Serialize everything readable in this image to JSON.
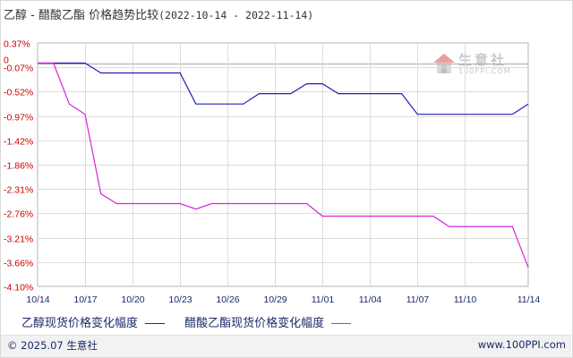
{
  "header": {
    "title": "乙醇 - 醋酸乙酯 价格趋势比较",
    "date_range": "(2022-10-14 - 2022-11-14)"
  },
  "watermark": {
    "name": "生意社",
    "url": "100PPI.COM"
  },
  "footer": {
    "copyright": "© 2025.07 生意社",
    "source": "www.100PPI.com"
  },
  "chart_data": {
    "type": "line",
    "title": "乙醇 - 醋酸乙酯 价格趋势比较(2022-10-14 - 2022-11-14)",
    "xlabel": "",
    "ylabel": "",
    "y_tick_labels": [
      "0.37%",
      "-0.07%",
      "-0.52%",
      "-0.97%",
      "-1.42%",
      "-1.86%",
      "-2.31%",
      "-2.76%",
      "-3.21%",
      "-3.66%",
      "-4.10%"
    ],
    "y_ticks": [
      0.37,
      -0.07,
      -0.52,
      -0.97,
      -1.42,
      -1.86,
      -2.31,
      -2.76,
      -3.21,
      -3.66,
      -4.1
    ],
    "ylim": [
      -4.1,
      0.37
    ],
    "zero_marker": "0",
    "x_tick_labels": [
      "10/14",
      "10/17",
      "10/20",
      "10/23",
      "10/26",
      "10/29",
      "11/01",
      "11/04",
      "11/07",
      "11/10",
      "11/14"
    ],
    "xlim": [
      "2022-10-14",
      "2022-11-14"
    ],
    "grid": true,
    "colors": {
      "series_1": "#1f1fb4",
      "series_2": "#d923d9",
      "y_tick": "#cc0000",
      "x_tick": "#1a2a6a"
    },
    "series": [
      {
        "name": "乙醇现货价格变化幅度",
        "points": [
          [
            "2022-10-14",
            0.0
          ],
          [
            "2022-10-17",
            0.0
          ],
          [
            "2022-10-18",
            -0.18
          ],
          [
            "2022-10-19",
            -0.18
          ],
          [
            "2022-10-20",
            -0.18
          ],
          [
            "2022-10-21",
            -0.18
          ],
          [
            "2022-10-22",
            -0.18
          ],
          [
            "2022-10-23",
            -0.18
          ],
          [
            "2022-10-24",
            -0.75
          ],
          [
            "2022-10-25",
            -0.75
          ],
          [
            "2022-10-26",
            -0.75
          ],
          [
            "2022-10-27",
            -0.75
          ],
          [
            "2022-10-28",
            -0.56
          ],
          [
            "2022-10-29",
            -0.56
          ],
          [
            "2022-10-30",
            -0.56
          ],
          [
            "2022-10-31",
            -0.38
          ],
          [
            "2022-11-01",
            -0.38
          ],
          [
            "2022-11-02",
            -0.56
          ],
          [
            "2022-11-03",
            -0.56
          ],
          [
            "2022-11-04",
            -0.56
          ],
          [
            "2022-11-05",
            -0.56
          ],
          [
            "2022-11-06",
            -0.56
          ],
          [
            "2022-11-07",
            -0.94
          ],
          [
            "2022-11-08",
            -0.94
          ],
          [
            "2022-11-09",
            -0.94
          ],
          [
            "2022-11-10",
            -0.94
          ],
          [
            "2022-11-11",
            -0.94
          ],
          [
            "2022-11-12",
            -0.94
          ],
          [
            "2022-11-13",
            -0.94
          ],
          [
            "2022-11-14",
            -0.75
          ]
        ]
      },
      {
        "name": "醋酸乙酯现货价格变化幅度",
        "points": [
          [
            "2022-10-14",
            0.0
          ],
          [
            "2022-10-15",
            0.0
          ],
          [
            "2022-10-16",
            -0.75
          ],
          [
            "2022-10-17",
            -0.94
          ],
          [
            "2022-10-18",
            -2.4
          ],
          [
            "2022-10-19",
            -2.58
          ],
          [
            "2022-10-20",
            -2.58
          ],
          [
            "2022-10-21",
            -2.58
          ],
          [
            "2022-10-22",
            -2.58
          ],
          [
            "2022-10-23",
            -2.58
          ],
          [
            "2022-10-24",
            -2.68
          ],
          [
            "2022-10-25",
            -2.58
          ],
          [
            "2022-10-26",
            -2.58
          ],
          [
            "2022-10-27",
            -2.58
          ],
          [
            "2022-10-28",
            -2.58
          ],
          [
            "2022-10-29",
            -2.58
          ],
          [
            "2022-10-30",
            -2.58
          ],
          [
            "2022-10-31",
            -2.58
          ],
          [
            "2022-11-01",
            -2.81
          ],
          [
            "2022-11-02",
            -2.81
          ],
          [
            "2022-11-03",
            -2.81
          ],
          [
            "2022-11-04",
            -2.81
          ],
          [
            "2022-11-05",
            -2.81
          ],
          [
            "2022-11-06",
            -2.81
          ],
          [
            "2022-11-07",
            -2.81
          ],
          [
            "2022-11-08",
            -2.81
          ],
          [
            "2022-11-09",
            -3.0
          ],
          [
            "2022-11-10",
            -3.0
          ],
          [
            "2022-11-11",
            -3.0
          ],
          [
            "2022-11-12",
            -3.0
          ],
          [
            "2022-11-13",
            -3.0
          ],
          [
            "2022-11-14",
            -3.75
          ]
        ]
      }
    ]
  }
}
